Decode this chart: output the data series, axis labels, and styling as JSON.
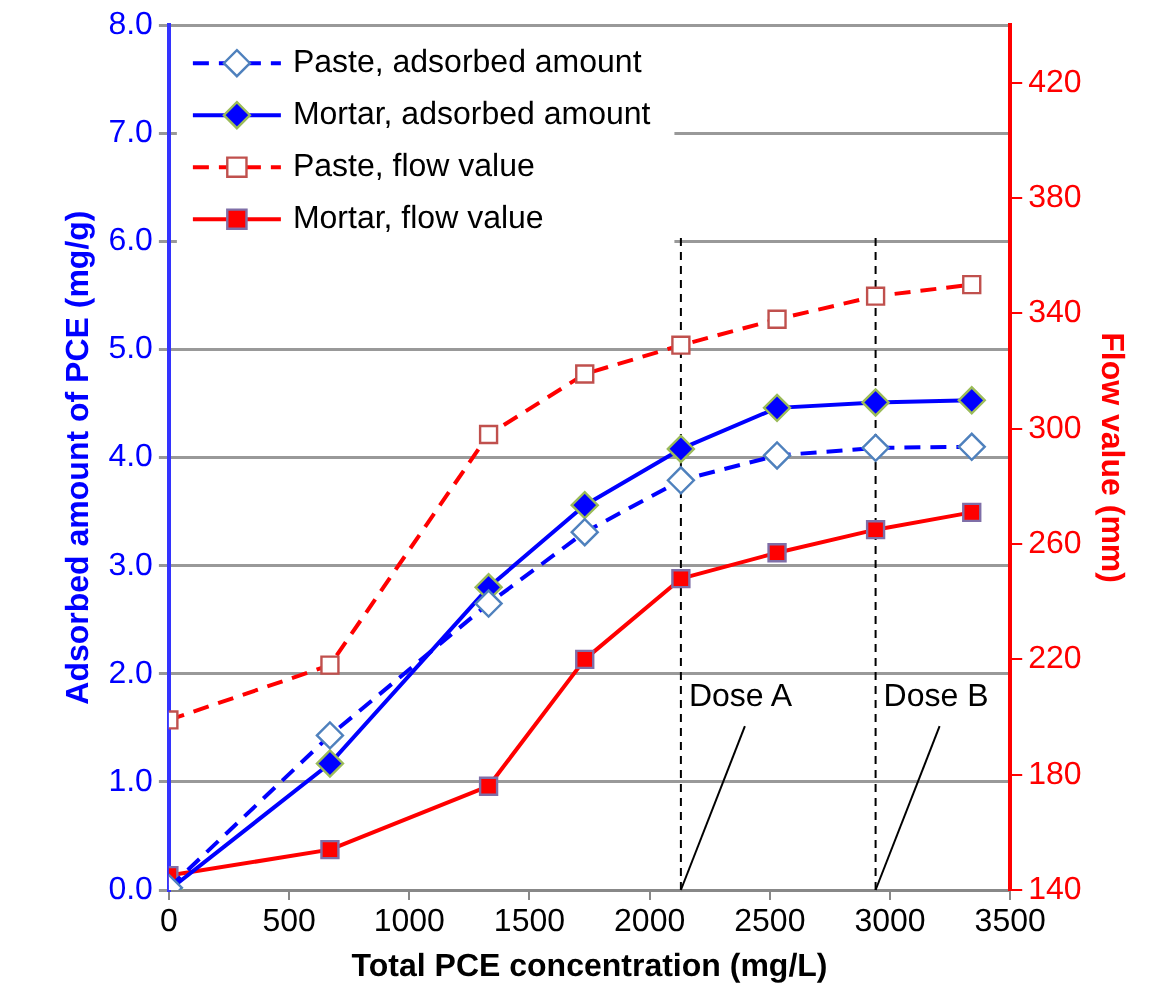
{
  "chart_data": {
    "type": "line",
    "xlabel": "Total PCE concentration (mg/L)",
    "ylabel": "Adsorbed amount of PCE (mg/g)",
    "y2label": "Flow value (mm)",
    "x": [
      0,
      670,
      1330,
      1730,
      2130,
      2530,
      2940,
      3340
    ],
    "xlim": [
      0,
      3500
    ],
    "xticks": [
      0,
      500,
      1000,
      1500,
      2000,
      2500,
      3000,
      3500
    ],
    "ylim": [
      0,
      8
    ],
    "yticks": [
      {
        "value": 0,
        "label": "0.0"
      },
      {
        "value": 1,
        "label": "1.0"
      },
      {
        "value": 2,
        "label": "2.0"
      },
      {
        "value": 3,
        "label": "3.0"
      },
      {
        "value": 4,
        "label": "4.0"
      },
      {
        "value": 5,
        "label": "5.0"
      },
      {
        "value": 6,
        "label": "6.0"
      },
      {
        "value": 7,
        "label": "7.0"
      },
      {
        "value": 8,
        "label": "8.0"
      }
    ],
    "y2lim": [
      140,
      440
    ],
    "y2ticks": [
      140,
      180,
      220,
      260,
      300,
      340,
      380,
      420
    ],
    "grid": "y",
    "legend": "top left",
    "series": [
      {
        "name": "Paste, adsorbed amount",
        "color": "#0000ff",
        "marker": "diamond",
        "line_style": "dashed",
        "values": [
          0.02,
          1.43,
          2.65,
          3.31,
          3.79,
          4.02,
          4.09,
          4.1
        ]
      },
      {
        "name": "Mortar, adsorbed amount",
        "color": "#0000ff",
        "marker": "diamond",
        "line_style": "solid",
        "values": [
          0,
          1.17,
          2.8,
          3.56,
          4.08,
          4.46,
          4.51,
          4.53
        ]
      },
      {
        "name": "Paste, flow value",
        "color": "#ff0000",
        "marker": "square",
        "line_style": "dashed",
        "axis": "y2",
        "values": [
          199,
          218,
          298,
          319,
          329,
          338,
          346,
          350
        ]
      },
      {
        "name": "Mortar, flow value",
        "color": "#ff0000",
        "marker": "square",
        "line_style": "solid",
        "axis": "y2",
        "values": [
          145,
          154,
          176,
          220,
          248,
          257,
          265,
          271
        ]
      }
    ],
    "ref_lines": [
      {
        "axis": "x",
        "value": 2130,
        "label": "Dose A",
        "color": "#000000",
        "line_style": "dashed"
      },
      {
        "axis": "x",
        "value": 2940,
        "label": "Dose B",
        "color": "#000000",
        "line_style": "dashed"
      }
    ]
  }
}
